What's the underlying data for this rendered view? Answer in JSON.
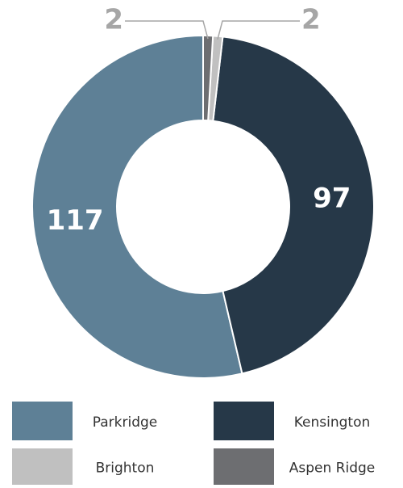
{
  "chart_data": {
    "type": "donut",
    "categories": [
      "Parkridge",
      "Kensington",
      "Brighton",
      "Aspen Ridge"
    ],
    "values": [
      117,
      97,
      2,
      2
    ],
    "colors": [
      "#5e8096",
      "#263848",
      "#c0c0c0",
      "#6d6e71"
    ]
  }
}
